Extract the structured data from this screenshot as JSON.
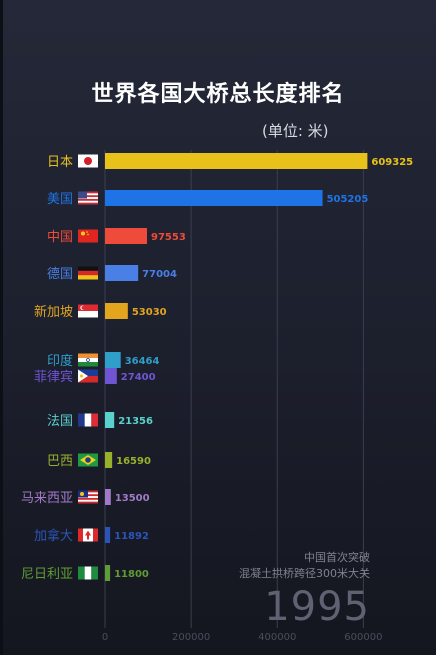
{
  "chart_data": {
    "type": "bar",
    "orientation": "horizontal",
    "title": "世界各国大桥总长度排名",
    "unit": "(单位: 米)",
    "categories": [
      "日本",
      "美国",
      "中国",
      "德国",
      "新加坡",
      "印度",
      "菲律宾",
      "法国",
      "巴西",
      "马来西亚",
      "加拿大",
      "尼日利亚"
    ],
    "values": [
      609325,
      505205,
      97553,
      77004,
      53030,
      36464,
      27400,
      21356,
      16590,
      13500,
      11892,
      11800
    ],
    "colors": [
      "#e8c21a",
      "#1e74e6",
      "#ef4b3a",
      "#4a7fe6",
      "#e3a41e",
      "#2f9ec8",
      "#6f55d4",
      "#5ad1cc",
      "#98b02a",
      "#a07ac6",
      "#2c54b8",
      "#5f9c36"
    ],
    "flags": [
      "japan-flag",
      "usa-flag",
      "china-flag",
      "germany-flag",
      "singapore-flag",
      "india-flag",
      "philippines-flag",
      "france-flag",
      "brazil-flag",
      "malaysia-flag",
      "canada-flag",
      "nigeria-flag"
    ],
    "xticks": [
      0,
      200000,
      400000,
      600000
    ],
    "xlim": [
      0,
      620000
    ],
    "grid": true
  },
  "year": "1995",
  "annotation": [
    "中国首次突破",
    "混凝土拱桥跨径300米大关"
  ]
}
